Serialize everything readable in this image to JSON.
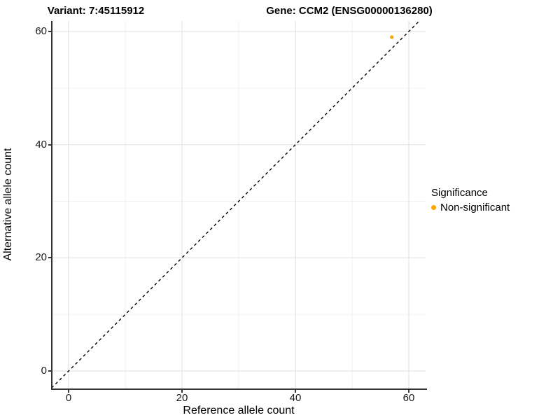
{
  "chart_data": {
    "type": "scatter",
    "titles": {
      "variant": "Variant: 7:45115912",
      "gene": "Gene: CCM2 (ENSG00000136280)"
    },
    "xlabel": "Reference allele count",
    "ylabel": "Alternative allele count",
    "xlim": [
      -3,
      63
    ],
    "ylim": [
      -3,
      63
    ],
    "x_ticks": [
      0,
      20,
      40,
      60
    ],
    "y_ticks": [
      0,
      20,
      40,
      60
    ],
    "x_minor_ticks": [
      10,
      30,
      50
    ],
    "y_minor_ticks": [
      10,
      30,
      50
    ],
    "grid": true,
    "legend_position": "right",
    "identity_line": {
      "style": "dashed",
      "color": "#000000",
      "from": [
        -3,
        -3
      ],
      "to": [
        63,
        63
      ]
    },
    "series": [
      {
        "name": "Non-significant",
        "color": "#FFA500",
        "points": [
          {
            "x": 57,
            "y": 59
          }
        ]
      }
    ],
    "legend": {
      "title": "Significance",
      "entries": [
        {
          "label": "Non-significant",
          "color": "#FFA500"
        }
      ]
    }
  },
  "colors": {
    "background": "#ffffff",
    "axis_line": "#333333",
    "tick_text": "#1a1a1a",
    "grid_major": "#e4e4e4",
    "grid_minor": "#f1f1f1",
    "point_orange": "#FFA500",
    "dashed_line": "#000000"
  }
}
